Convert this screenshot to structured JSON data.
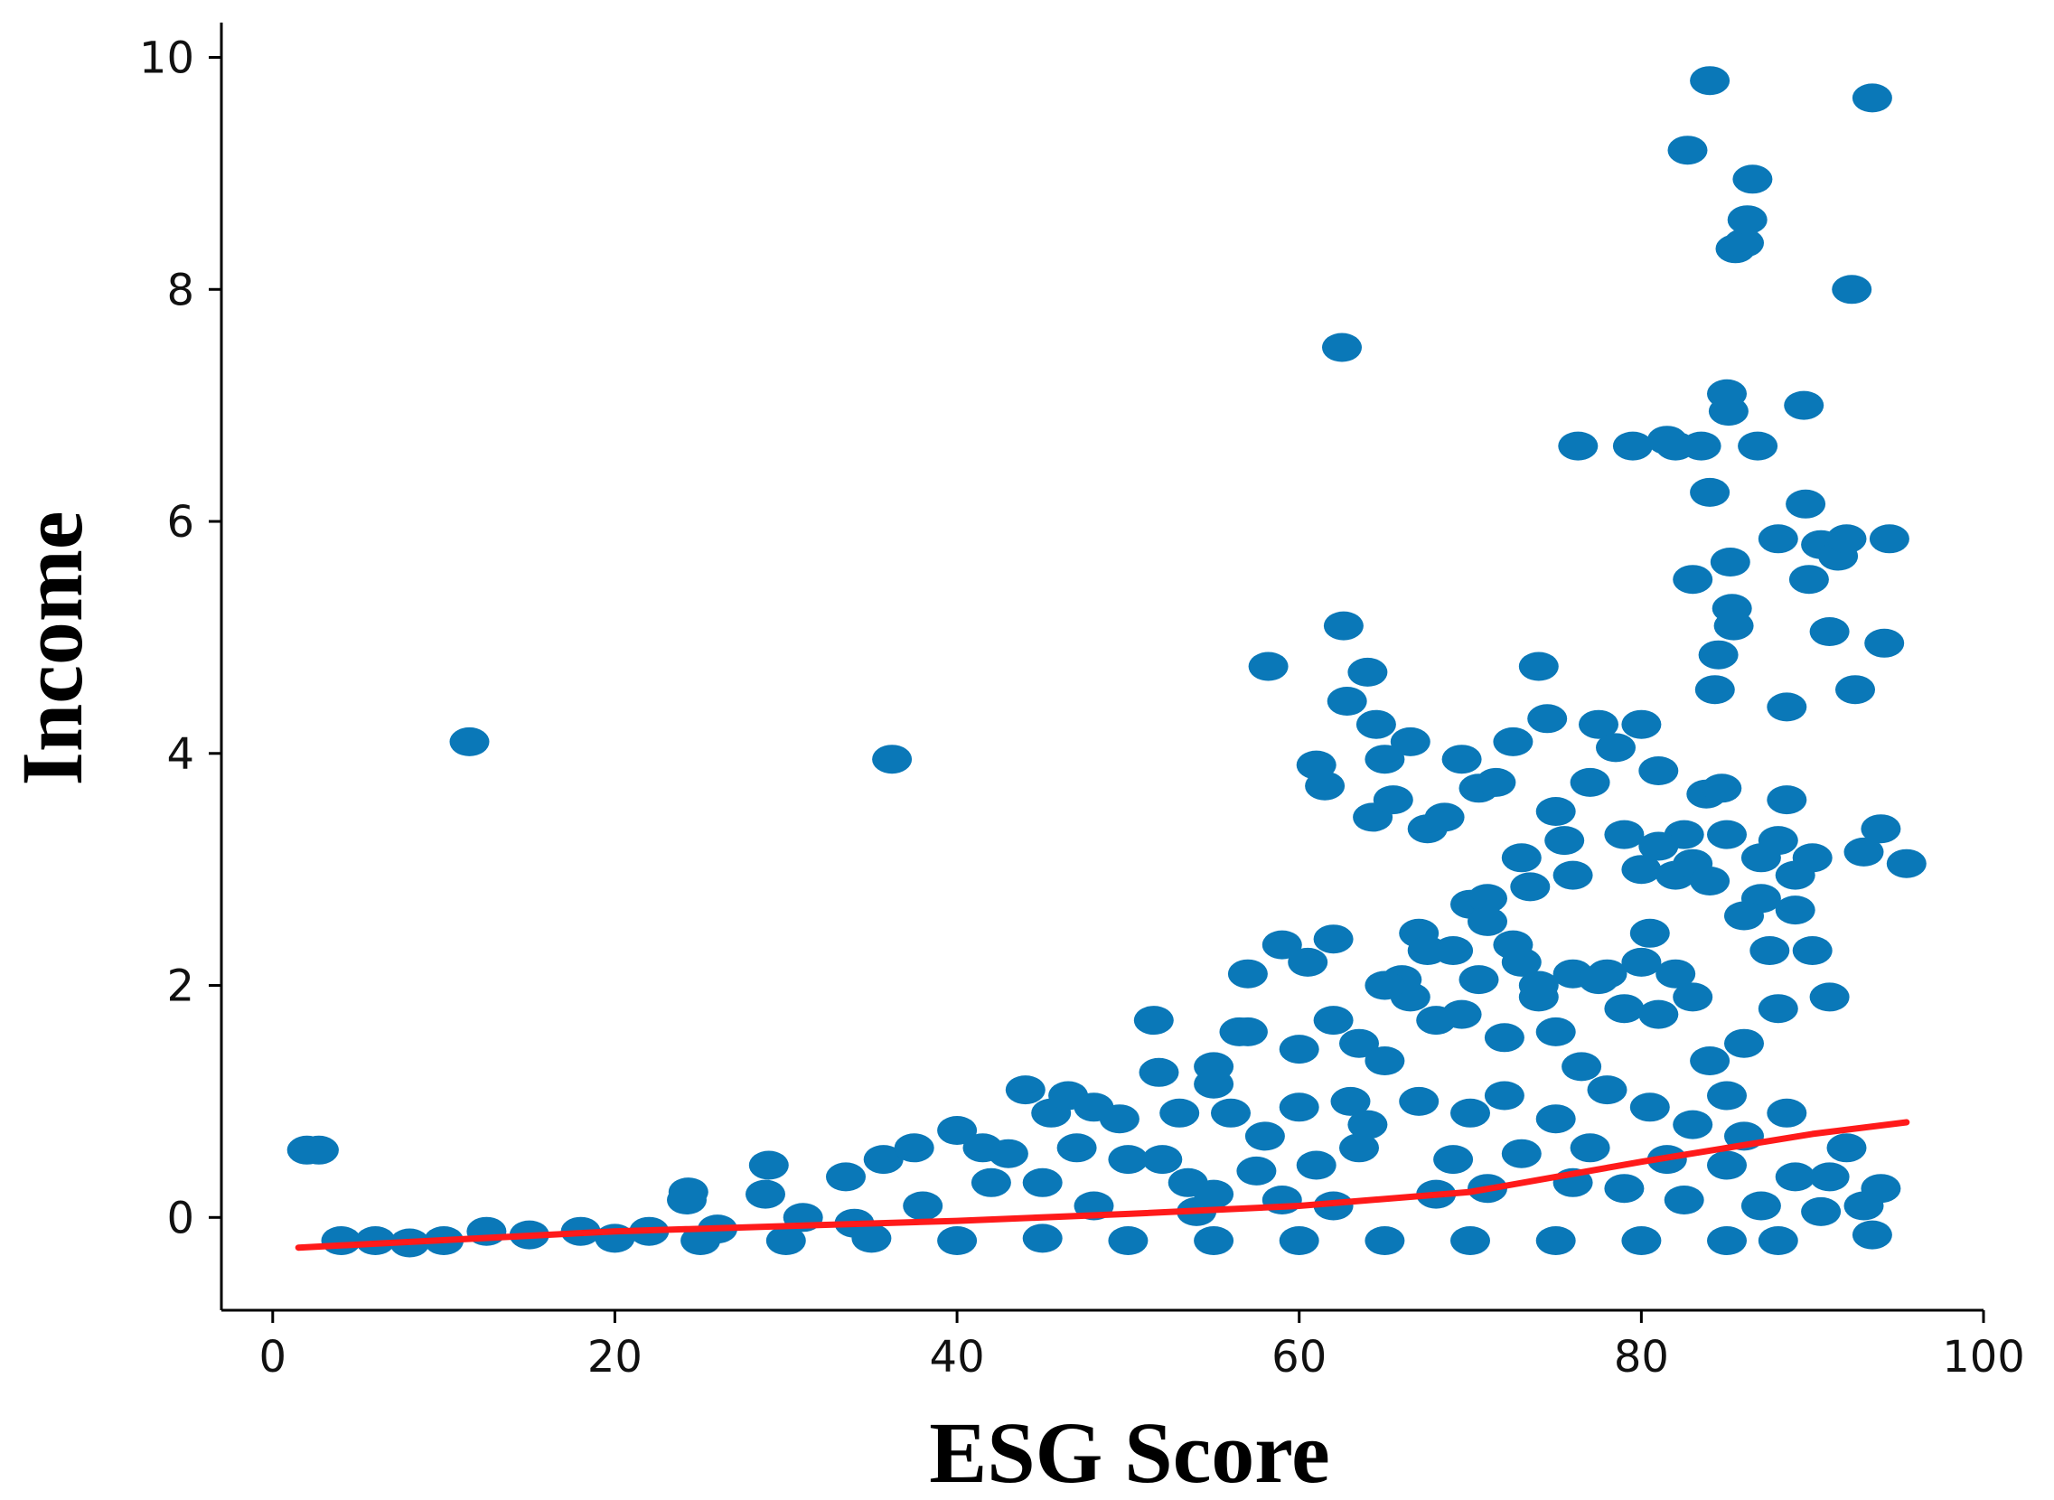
{
  "chart_data": {
    "type": "scatter",
    "xlabel": "ESG Score",
    "ylabel": "Income",
    "xlim": [
      -3,
      100
    ],
    "ylim": [
      -0.8,
      10.3
    ],
    "x_ticks": [
      0,
      20,
      40,
      60,
      80,
      100
    ],
    "y_ticks": [
      0,
      2,
      4,
      6,
      8,
      10
    ],
    "grid": false,
    "legend": "none",
    "colors": {
      "points": "#0a78b8",
      "trend": "#ff1a1a",
      "axis": "#000000"
    },
    "series": [
      {
        "type": "scatter",
        "points": [
          [
            2,
            0.58
          ],
          [
            2.7,
            0.58
          ],
          [
            11.5,
            4.1
          ],
          [
            36.2,
            3.95
          ],
          [
            24.3,
            0.22
          ],
          [
            24.2,
            0.15
          ],
          [
            29,
            0.45
          ],
          [
            28.8,
            0.2
          ],
          [
            33.5,
            0.35
          ],
          [
            35.7,
            0.5
          ],
          [
            37.5,
            0.6
          ],
          [
            40,
            0.75
          ],
          [
            41.5,
            0.6
          ],
          [
            44,
            1.1
          ],
          [
            45.5,
            0.9
          ],
          [
            46.5,
            1.05
          ],
          [
            48,
            0.95
          ],
          [
            49.5,
            0.85
          ],
          [
            51.5,
            1.7
          ],
          [
            51.8,
            1.25
          ],
          [
            53,
            0.9
          ],
          [
            55,
            1.15
          ],
          [
            56.5,
            1.6
          ],
          [
            57,
            2.1
          ],
          [
            58.2,
            4.75
          ],
          [
            59,
            2.35
          ],
          [
            60.5,
            2.2
          ],
          [
            61,
            3.9
          ],
          [
            61.5,
            3.72
          ],
          [
            62,
            2.4
          ],
          [
            62.5,
            7.5
          ],
          [
            62.6,
            5.1
          ],
          [
            62.8,
            4.45
          ],
          [
            63.5,
            1.5
          ],
          [
            64,
            4.7
          ],
          [
            64.3,
            3.45
          ],
          [
            64.5,
            4.25
          ],
          [
            65,
            3.95
          ],
          [
            65.5,
            3.6
          ],
          [
            66,
            2.05
          ],
          [
            66.5,
            4.1
          ],
          [
            67,
            2.45
          ],
          [
            67.5,
            3.35
          ],
          [
            68.5,
            3.45
          ],
          [
            69.5,
            3.95
          ],
          [
            70,
            2.7
          ],
          [
            70.5,
            3.7
          ],
          [
            71,
            2.75
          ],
          [
            71.5,
            3.75
          ],
          [
            72.5,
            4.1
          ],
          [
            73,
            3.1
          ],
          [
            73.5,
            2.85
          ],
          [
            74,
            4.75
          ],
          [
            74.5,
            4.3
          ],
          [
            75,
            3.5
          ],
          [
            75.5,
            3.25
          ],
          [
            76,
            2.95
          ],
          [
            76.3,
            6.65
          ],
          [
            77,
            3.75
          ],
          [
            77.5,
            4.25
          ],
          [
            78.5,
            4.05
          ],
          [
            79.5,
            6.65
          ],
          [
            80,
            4.25
          ],
          [
            80.5,
            2.45
          ],
          [
            81,
            3.85
          ],
          [
            81.5,
            6.7
          ],
          [
            82,
            6.65
          ],
          [
            82.5,
            3.3
          ],
          [
            82.7,
            9.2
          ],
          [
            83,
            5.5
          ],
          [
            83.5,
            6.65
          ],
          [
            83.8,
            3.65
          ],
          [
            84,
            9.8
          ],
          [
            84,
            6.25
          ],
          [
            84.3,
            4.55
          ],
          [
            84.5,
            4.85
          ],
          [
            84.7,
            3.7
          ],
          [
            85,
            7.1
          ],
          [
            85.1,
            6.95
          ],
          [
            85.2,
            5.65
          ],
          [
            85.3,
            5.25
          ],
          [
            85.4,
            5.1
          ],
          [
            85.5,
            8.35
          ],
          [
            86,
            8.4
          ],
          [
            86.2,
            8.6
          ],
          [
            86.5,
            8.95
          ],
          [
            86.8,
            6.65
          ],
          [
            87,
            2.75
          ],
          [
            88,
            5.85
          ],
          [
            88.5,
            3.6
          ],
          [
            88.5,
            4.4
          ],
          [
            89.5,
            7.0
          ],
          [
            89.6,
            6.15
          ],
          [
            89.8,
            5.5
          ],
          [
            90,
            3.1
          ],
          [
            90.5,
            5.8
          ],
          [
            91,
            5.05
          ],
          [
            91.5,
            5.7
          ],
          [
            92,
            5.85
          ],
          [
            92.5,
            4.55
          ],
          [
            92.3,
            8.0
          ],
          [
            93.5,
            9.65
          ],
          [
            93,
            3.15
          ],
          [
            94,
            3.35
          ],
          [
            94.2,
            4.95
          ],
          [
            94.5,
            5.85
          ],
          [
            95.5,
            3.05
          ],
          [
            91,
            1.9
          ],
          [
            92,
            0.6
          ],
          [
            94,
            0.25
          ],
          [
            4,
            -0.2
          ],
          [
            6,
            -0.2
          ],
          [
            8,
            -0.22
          ],
          [
            10,
            -0.2
          ],
          [
            12.5,
            -0.12
          ],
          [
            15,
            -0.15
          ],
          [
            18,
            -0.12
          ],
          [
            20,
            -0.18
          ],
          [
            22,
            -0.12
          ],
          [
            26,
            -0.1
          ],
          [
            31,
            0.0
          ],
          [
            34,
            -0.05
          ],
          [
            38,
            0.1
          ],
          [
            42,
            0.3
          ],
          [
            43,
            0.55
          ],
          [
            47,
            0.6
          ],
          [
            50,
            0.5
          ],
          [
            53.5,
            0.3
          ],
          [
            57.5,
            0.4
          ],
          [
            60,
            0.95
          ],
          [
            63,
            1.0
          ],
          [
            65,
            1.35
          ],
          [
            66.5,
            1.9
          ],
          [
            68,
            1.7
          ],
          [
            69,
            2.3
          ],
          [
            70.5,
            2.05
          ],
          [
            72,
            1.55
          ],
          [
            73,
            2.2
          ],
          [
            74,
            1.9
          ],
          [
            75,
            1.6
          ],
          [
            76.5,
            1.3
          ],
          [
            78,
            2.1
          ],
          [
            79,
            1.8
          ],
          [
            80,
            2.2
          ],
          [
            81,
            1.75
          ],
          [
            82,
            2.1
          ],
          [
            83,
            1.9
          ],
          [
            84,
            1.35
          ],
          [
            85,
            1.05
          ],
          [
            86,
            1.5
          ],
          [
            87.5,
            2.3
          ],
          [
            88,
            1.8
          ],
          [
            89,
            2.65
          ],
          [
            90,
            2.3
          ],
          [
            91,
            0.35
          ],
          [
            58,
            0.7
          ],
          [
            56,
            0.9
          ],
          [
            64,
            0.8
          ],
          [
            67,
            1.0
          ],
          [
            70,
            0.9
          ],
          [
            72,
            1.05
          ],
          [
            75,
            0.85
          ],
          [
            78,
            1.1
          ],
          [
            80.5,
            0.95
          ],
          [
            83,
            0.8
          ],
          [
            86,
            0.7
          ],
          [
            88.5,
            0.9
          ],
          [
            45,
            0.3
          ],
          [
            52,
            0.5
          ],
          [
            55,
            0.2
          ],
          [
            61,
            0.45
          ],
          [
            63.5,
            0.6
          ],
          [
            69,
            0.5
          ],
          [
            73,
            0.55
          ],
          [
            77,
            0.6
          ],
          [
            81.5,
            0.5
          ],
          [
            85,
            0.45
          ],
          [
            89,
            0.35
          ],
          [
            93,
            0.1
          ],
          [
            48,
            0.1
          ],
          [
            54,
            0.05
          ],
          [
            59,
            0.15
          ],
          [
            62,
            0.1
          ],
          [
            68,
            0.2
          ],
          [
            71,
            0.25
          ],
          [
            76,
            0.3
          ],
          [
            79,
            0.25
          ],
          [
            82.5,
            0.15
          ],
          [
            87,
            0.1
          ],
          [
            90.5,
            0.05
          ],
          [
            93.5,
            -0.15
          ],
          [
            30,
            -0.2
          ],
          [
            40,
            -0.2
          ],
          [
            50,
            -0.2
          ],
          [
            60,
            -0.2
          ],
          [
            70,
            -0.2
          ],
          [
            80,
            -0.2
          ],
          [
            88,
            -0.2
          ],
          [
            25,
            -0.2
          ],
          [
            35,
            -0.18
          ],
          [
            45,
            -0.18
          ],
          [
            55,
            -0.2
          ],
          [
            65,
            -0.2
          ],
          [
            75,
            -0.2
          ],
          [
            85,
            -0.2
          ],
          [
            55,
            1.3
          ],
          [
            57,
            1.6
          ],
          [
            60,
            1.45
          ],
          [
            62,
            1.7
          ],
          [
            65,
            2.0
          ],
          [
            67.5,
            2.3
          ],
          [
            69.5,
            1.75
          ],
          [
            71,
            2.55
          ],
          [
            72.5,
            2.35
          ],
          [
            74,
            2.0
          ],
          [
            76,
            2.1
          ],
          [
            77.5,
            2.05
          ],
          [
            79,
            3.3
          ],
          [
            80,
            3.0
          ],
          [
            81,
            3.2
          ],
          [
            82,
            2.95
          ],
          [
            83,
            3.05
          ],
          [
            84,
            2.9
          ],
          [
            85,
            3.3
          ],
          [
            86,
            2.6
          ],
          [
            87,
            3.1
          ],
          [
            88,
            3.25
          ],
          [
            89,
            2.95
          ]
        ]
      },
      {
        "type": "line",
        "points": [
          [
            1.5,
            -0.26
          ],
          [
            20,
            -0.12
          ],
          [
            40,
            -0.03
          ],
          [
            50,
            0.03
          ],
          [
            60,
            0.1
          ],
          [
            70,
            0.22
          ],
          [
            80,
            0.48
          ],
          [
            90,
            0.72
          ],
          [
            95.5,
            0.82
          ]
        ]
      }
    ]
  }
}
